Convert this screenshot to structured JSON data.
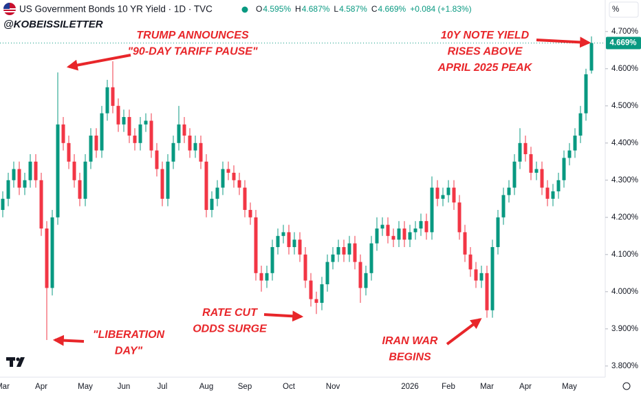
{
  "header": {
    "title": "US Government Bonds 10 YR Yield · 1D · TVC",
    "ohlc": [
      {
        "key": "O",
        "value": "4.595%"
      },
      {
        "key": "H",
        "value": "4.687%"
      },
      {
        "key": "L",
        "value": "4.587%"
      },
      {
        "key": "C",
        "value": "4.669%"
      }
    ],
    "change": "+0.084 (+1.83%)",
    "unit_button": "%"
  },
  "chart_data": {
    "type": "candlestick",
    "handle": "@KOBEISSILETTER",
    "up_color": "#089981",
    "down_color": "#f23645",
    "grid": false,
    "ylim": [
      3.77,
      4.733
    ],
    "yticks": [
      {
        "value": 3.8,
        "label": "3.800%"
      },
      {
        "value": 3.9,
        "label": "3.900%"
      },
      {
        "value": 4.0,
        "label": "4.000%"
      },
      {
        "value": 4.1,
        "label": "4.100%"
      },
      {
        "value": 4.2,
        "label": "4.200%"
      },
      {
        "value": 4.3,
        "label": "4.300%"
      },
      {
        "value": 4.4,
        "label": "4.400%"
      },
      {
        "value": 4.5,
        "label": "4.500%"
      },
      {
        "value": 4.6,
        "label": "4.600%"
      },
      {
        "value": 4.7,
        "label": "4.700%"
      }
    ],
    "last_label": "4.669%",
    "categories": [
      "Mar",
      null,
      null,
      null,
      null,
      null,
      null,
      "Apr",
      null,
      null,
      null,
      null,
      null,
      null,
      null,
      "May",
      null,
      null,
      null,
      null,
      null,
      null,
      "Jun",
      null,
      null,
      null,
      null,
      null,
      null,
      "Jul",
      null,
      null,
      null,
      null,
      null,
      null,
      null,
      "Aug",
      null,
      null,
      null,
      null,
      null,
      null,
      "Sep",
      null,
      null,
      null,
      null,
      null,
      null,
      null,
      "Oct",
      null,
      null,
      null,
      null,
      null,
      null,
      null,
      "Nov",
      null,
      null,
      null,
      null,
      null,
      null,
      null,
      null,
      null,
      null,
      null,
      null,
      null,
      "2026",
      null,
      null,
      null,
      null,
      null,
      null,
      "Feb",
      null,
      null,
      null,
      null,
      null,
      null,
      "Mar",
      null,
      null,
      null,
      null,
      null,
      null,
      "Apr",
      null,
      null,
      null,
      null,
      null,
      null,
      null,
      "May",
      null,
      null,
      null,
      null
    ],
    "values": [
      [
        4.22,
        4.27,
        4.2,
        4.25
      ],
      [
        4.25,
        4.32,
        4.23,
        4.3
      ],
      [
        4.3,
        4.35,
        4.28,
        4.33
      ],
      [
        4.33,
        4.35,
        4.26,
        4.28
      ],
      [
        4.28,
        4.32,
        4.26,
        4.3
      ],
      [
        4.3,
        4.37,
        4.28,
        4.35
      ],
      [
        4.35,
        4.37,
        4.28,
        4.3
      ],
      [
        4.3,
        4.32,
        4.15,
        4.17
      ],
      [
        4.17,
        4.19,
        3.87,
        4.01
      ],
      [
        4.01,
        4.22,
        3.99,
        4.2
      ],
      [
        4.2,
        4.59,
        4.18,
        4.45
      ],
      [
        4.45,
        4.47,
        4.38,
        4.4
      ],
      [
        4.4,
        4.42,
        4.33,
        4.35
      ],
      [
        4.35,
        4.37,
        4.28,
        4.3
      ],
      [
        4.3,
        4.32,
        4.23,
        4.25
      ],
      [
        4.25,
        4.37,
        4.23,
        4.35
      ],
      [
        4.35,
        4.44,
        4.33,
        4.42
      ],
      [
        4.42,
        4.44,
        4.36,
        4.38
      ],
      [
        4.38,
        4.5,
        4.36,
        4.48
      ],
      [
        4.48,
        4.57,
        4.46,
        4.55
      ],
      [
        4.55,
        4.62,
        4.48,
        4.5
      ],
      [
        4.5,
        4.52,
        4.43,
        4.45
      ],
      [
        4.45,
        4.49,
        4.43,
        4.47
      ],
      [
        4.47,
        4.49,
        4.4,
        4.42
      ],
      [
        4.42,
        4.44,
        4.38,
        4.4
      ],
      [
        4.4,
        4.47,
        4.38,
        4.45
      ],
      [
        4.45,
        4.48,
        4.43,
        4.46
      ],
      [
        4.46,
        4.48,
        4.36,
        4.38
      ],
      [
        4.38,
        4.4,
        4.31,
        4.33
      ],
      [
        4.33,
        4.35,
        4.23,
        4.25
      ],
      [
        4.25,
        4.37,
        4.23,
        4.35
      ],
      [
        4.35,
        4.42,
        4.33,
        4.4
      ],
      [
        4.4,
        4.5,
        4.38,
        4.45
      ],
      [
        4.45,
        4.47,
        4.4,
        4.42
      ],
      [
        4.42,
        4.44,
        4.36,
        4.38
      ],
      [
        4.38,
        4.42,
        4.36,
        4.4
      ],
      [
        4.4,
        4.42,
        4.33,
        4.35
      ],
      [
        4.35,
        4.37,
        4.2,
        4.22
      ],
      [
        4.22,
        4.27,
        4.2,
        4.25
      ],
      [
        4.25,
        4.3,
        4.23,
        4.28
      ],
      [
        4.28,
        4.35,
        4.26,
        4.33
      ],
      [
        4.33,
        4.35,
        4.3,
        4.32
      ],
      [
        4.32,
        4.34,
        4.28,
        4.3
      ],
      [
        4.3,
        4.32,
        4.26,
        4.28
      ],
      [
        4.28,
        4.3,
        4.2,
        4.22
      ],
      [
        4.22,
        4.24,
        4.18,
        4.2
      ],
      [
        4.2,
        4.22,
        4.03,
        4.05
      ],
      [
        4.05,
        4.07,
        4.0,
        4.03
      ],
      [
        4.03,
        4.07,
        4.01,
        4.05
      ],
      [
        4.05,
        4.14,
        4.03,
        4.12
      ],
      [
        4.12,
        4.17,
        4.1,
        4.15
      ],
      [
        4.15,
        4.18,
        4.13,
        4.16
      ],
      [
        4.16,
        4.18,
        4.1,
        4.12
      ],
      [
        4.12,
        4.16,
        4.1,
        4.14
      ],
      [
        4.14,
        4.16,
        4.08,
        4.1
      ],
      [
        4.1,
        4.12,
        4.01,
        4.03
      ],
      [
        4.03,
        4.05,
        3.96,
        3.98
      ],
      [
        3.98,
        4.0,
        3.94,
        3.97
      ],
      [
        3.97,
        4.04,
        3.95,
        4.02
      ],
      [
        4.02,
        4.1,
        4.0,
        4.08
      ],
      [
        4.08,
        4.12,
        4.06,
        4.1
      ],
      [
        4.1,
        4.14,
        4.08,
        4.12
      ],
      [
        4.12,
        4.14,
        4.08,
        4.1
      ],
      [
        4.1,
        4.15,
        4.08,
        4.13
      ],
      [
        4.13,
        4.15,
        4.06,
        4.08
      ],
      [
        4.08,
        4.1,
        3.97,
        4.01
      ],
      [
        4.01,
        4.07,
        3.99,
        4.05
      ],
      [
        4.05,
        4.15,
        4.03,
        4.13
      ],
      [
        4.13,
        4.2,
        4.11,
        4.17
      ],
      [
        4.17,
        4.2,
        4.15,
        4.18
      ],
      [
        4.18,
        4.2,
        4.13,
        4.15
      ],
      [
        4.15,
        4.17,
        4.12,
        4.14
      ],
      [
        4.14,
        4.19,
        4.12,
        4.17
      ],
      [
        4.17,
        4.19,
        4.12,
        4.14
      ],
      [
        4.14,
        4.18,
        4.12,
        4.16
      ],
      [
        4.16,
        4.19,
        4.14,
        4.17
      ],
      [
        4.17,
        4.21,
        4.15,
        4.19
      ],
      [
        4.19,
        4.21,
        4.14,
        4.16
      ],
      [
        4.16,
        4.31,
        4.14,
        4.28
      ],
      [
        4.28,
        4.3,
        4.23,
        4.25
      ],
      [
        4.25,
        4.28,
        4.23,
        4.26
      ],
      [
        4.26,
        4.3,
        4.24,
        4.28
      ],
      [
        4.28,
        4.3,
        4.22,
        4.24
      ],
      [
        4.24,
        4.26,
        4.14,
        4.16
      ],
      [
        4.16,
        4.18,
        4.08,
        4.1
      ],
      [
        4.1,
        4.12,
        4.04,
        4.06
      ],
      [
        4.06,
        4.08,
        4.01,
        4.03
      ],
      [
        4.03,
        4.07,
        4.01,
        4.05
      ],
      [
        4.05,
        4.07,
        3.93,
        3.95
      ],
      [
        3.95,
        4.14,
        3.93,
        4.12
      ],
      [
        4.12,
        4.22,
        4.1,
        4.2
      ],
      [
        4.2,
        4.28,
        4.18,
        4.26
      ],
      [
        4.26,
        4.3,
        4.24,
        4.28
      ],
      [
        4.28,
        4.37,
        4.26,
        4.35
      ],
      [
        4.35,
        4.44,
        4.33,
        4.4
      ],
      [
        4.4,
        4.42,
        4.35,
        4.37
      ],
      [
        4.37,
        4.39,
        4.3,
        4.32
      ],
      [
        4.32,
        4.35,
        4.3,
        4.33
      ],
      [
        4.33,
        4.35,
        4.26,
        4.28
      ],
      [
        4.28,
        4.3,
        4.23,
        4.25
      ],
      [
        4.25,
        4.29,
        4.23,
        4.27
      ],
      [
        4.27,
        4.32,
        4.25,
        4.3
      ],
      [
        4.3,
        4.38,
        4.28,
        4.36
      ],
      [
        4.36,
        4.4,
        4.34,
        4.38
      ],
      [
        4.38,
        4.44,
        4.36,
        4.42
      ],
      [
        4.42,
        4.5,
        4.4,
        4.48
      ],
      [
        4.48,
        4.6,
        4.46,
        4.585
      ],
      [
        4.595,
        4.687,
        4.587,
        4.669
      ]
    ],
    "annotations": [
      {
        "lines": [
          "TRUMP ANNOUNCES",
          "\"90-DAY TARIFF PAUSE\""
        ]
      },
      {
        "lines": [
          "10Y NOTE YIELD",
          "RISES ABOVE",
          "APRIL 2025 PEAK"
        ]
      },
      {
        "lines": [
          "\"LIBERATION",
          "DAY\""
        ]
      },
      {
        "lines": [
          "RATE CUT",
          "ODDS SURGE"
        ]
      },
      {
        "lines": [
          "IRAN WAR",
          "BEGINS"
        ]
      }
    ]
  }
}
